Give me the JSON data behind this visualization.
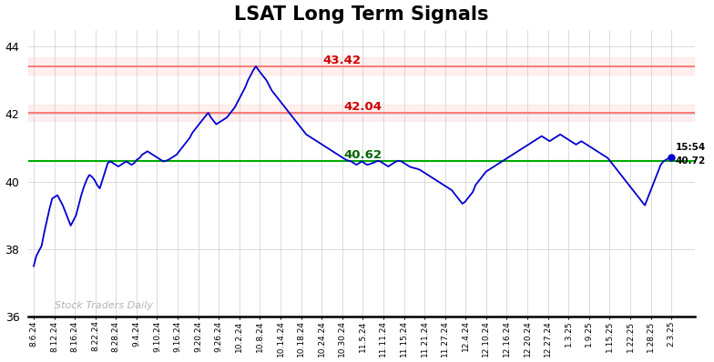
{
  "title": "LSAT Long Term Signals",
  "title_fontsize": 15,
  "title_fontweight": "bold",
  "line_color": "#0000cc",
  "line_width": 1.3,
  "background_color": "#ffffff",
  "grid_color": "#cccccc",
  "hline_green": 40.62,
  "hline_green_color": "#00aa00",
  "hline_red1": 42.04,
  "hline_red1_color": "#ff6666",
  "hline_red2": 43.42,
  "hline_red2_color": "#ff6666",
  "hline_band1_alpha": 0.18,
  "hline_band2_alpha": 0.18,
  "annotation_43_42": "43.42",
  "annotation_42_04": "42.04",
  "annotation_40_62": "40.62",
  "annotation_end_time": "15:54",
  "annotation_end_price": "40.72",
  "watermark": "Stock Traders Daily",
  "ylim_low": 36,
  "ylim_high": 44.5,
  "yticks": [
    36,
    38,
    40,
    42,
    44
  ],
  "x_labels": [
    "8.6.24",
    "8.12.24",
    "8.16.24",
    "8.22.24",
    "8.28.24",
    "9.4.24",
    "9.10.24",
    "9.16.24",
    "9.20.24",
    "9.26.24",
    "10.2.24",
    "10.8.24",
    "10.14.24",
    "10.18.24",
    "10.24.24",
    "10.30.24",
    "11.5.24",
    "11.11.24",
    "11.15.24",
    "11.21.24",
    "11.27.24",
    "12.4.24",
    "12.10.24",
    "12.16.24",
    "12.20.24",
    "12.27.24",
    "1.3.25",
    "1.9.25",
    "1.15.25",
    "1.22.25",
    "1.28.25",
    "2.3.25"
  ],
  "prices": [
    37.5,
    37.8,
    37.95,
    38.1,
    38.5,
    38.85,
    39.2,
    39.5,
    39.55,
    39.6,
    39.45,
    39.3,
    39.1,
    38.9,
    38.7,
    38.85,
    39.0,
    39.3,
    39.6,
    39.85,
    40.05,
    40.2,
    40.15,
    40.05,
    39.9,
    39.8,
    40.05,
    40.3,
    40.55,
    40.6,
    40.55,
    40.5,
    40.45,
    40.5,
    40.55,
    40.6,
    40.55,
    40.5,
    40.55,
    40.65,
    40.7,
    40.8,
    40.85,
    40.9,
    40.85,
    40.8,
    40.75,
    40.7,
    40.65,
    40.6,
    40.62,
    40.65,
    40.7,
    40.75,
    40.8,
    40.9,
    41.0,
    41.1,
    41.2,
    41.3,
    41.45,
    41.55,
    41.65,
    41.75,
    41.85,
    41.95,
    42.04,
    41.9,
    41.8,
    41.7,
    41.75,
    41.8,
    41.85,
    41.9,
    42.0,
    42.1,
    42.2,
    42.35,
    42.5,
    42.65,
    42.8,
    43.0,
    43.15,
    43.3,
    43.42,
    43.3,
    43.2,
    43.1,
    43.0,
    42.85,
    42.7,
    42.6,
    42.5,
    42.4,
    42.3,
    42.2,
    42.1,
    42.0,
    41.9,
    41.8,
    41.7,
    41.6,
    41.5,
    41.4,
    41.35,
    41.3,
    41.25,
    41.2,
    41.15,
    41.1,
    41.05,
    41.0,
    40.95,
    40.9,
    40.85,
    40.8,
    40.75,
    40.7,
    40.65,
    40.62,
    40.6,
    40.55,
    40.5,
    40.55,
    40.6,
    40.55,
    40.5,
    40.52,
    40.55,
    40.58,
    40.62,
    40.6,
    40.55,
    40.5,
    40.45,
    40.5,
    40.55,
    40.6,
    40.62,
    40.6,
    40.55,
    40.5,
    40.45,
    40.42,
    40.4,
    40.38,
    40.35,
    40.3,
    40.25,
    40.2,
    40.15,
    40.1,
    40.05,
    40.0,
    39.95,
    39.9,
    39.85,
    39.8,
    39.75,
    39.65,
    39.55,
    39.45,
    39.35,
    39.4,
    39.5,
    39.6,
    39.7,
    39.9,
    40.0,
    40.1,
    40.2,
    40.3,
    40.35,
    40.4,
    40.45,
    40.5,
    40.55,
    40.6,
    40.65,
    40.7,
    40.75,
    40.8,
    40.85,
    40.9,
    40.95,
    41.0,
    41.05,
    41.1,
    41.15,
    41.2,
    41.25,
    41.3,
    41.35,
    41.3,
    41.25,
    41.2,
    41.25,
    41.3,
    41.35,
    41.4,
    41.35,
    41.3,
    41.25,
    41.2,
    41.15,
    41.1,
    41.15,
    41.2,
    41.15,
    41.1,
    41.05,
    41.0,
    40.95,
    40.9,
    40.85,
    40.8,
    40.75,
    40.7,
    40.6,
    40.5,
    40.4,
    40.3,
    40.2,
    40.1,
    40.0,
    39.9,
    39.8,
    39.7,
    39.6,
    39.5,
    39.4,
    39.3,
    39.5,
    39.7,
    39.9,
    40.1,
    40.3,
    40.5,
    40.6,
    40.65,
    40.7,
    40.72
  ]
}
